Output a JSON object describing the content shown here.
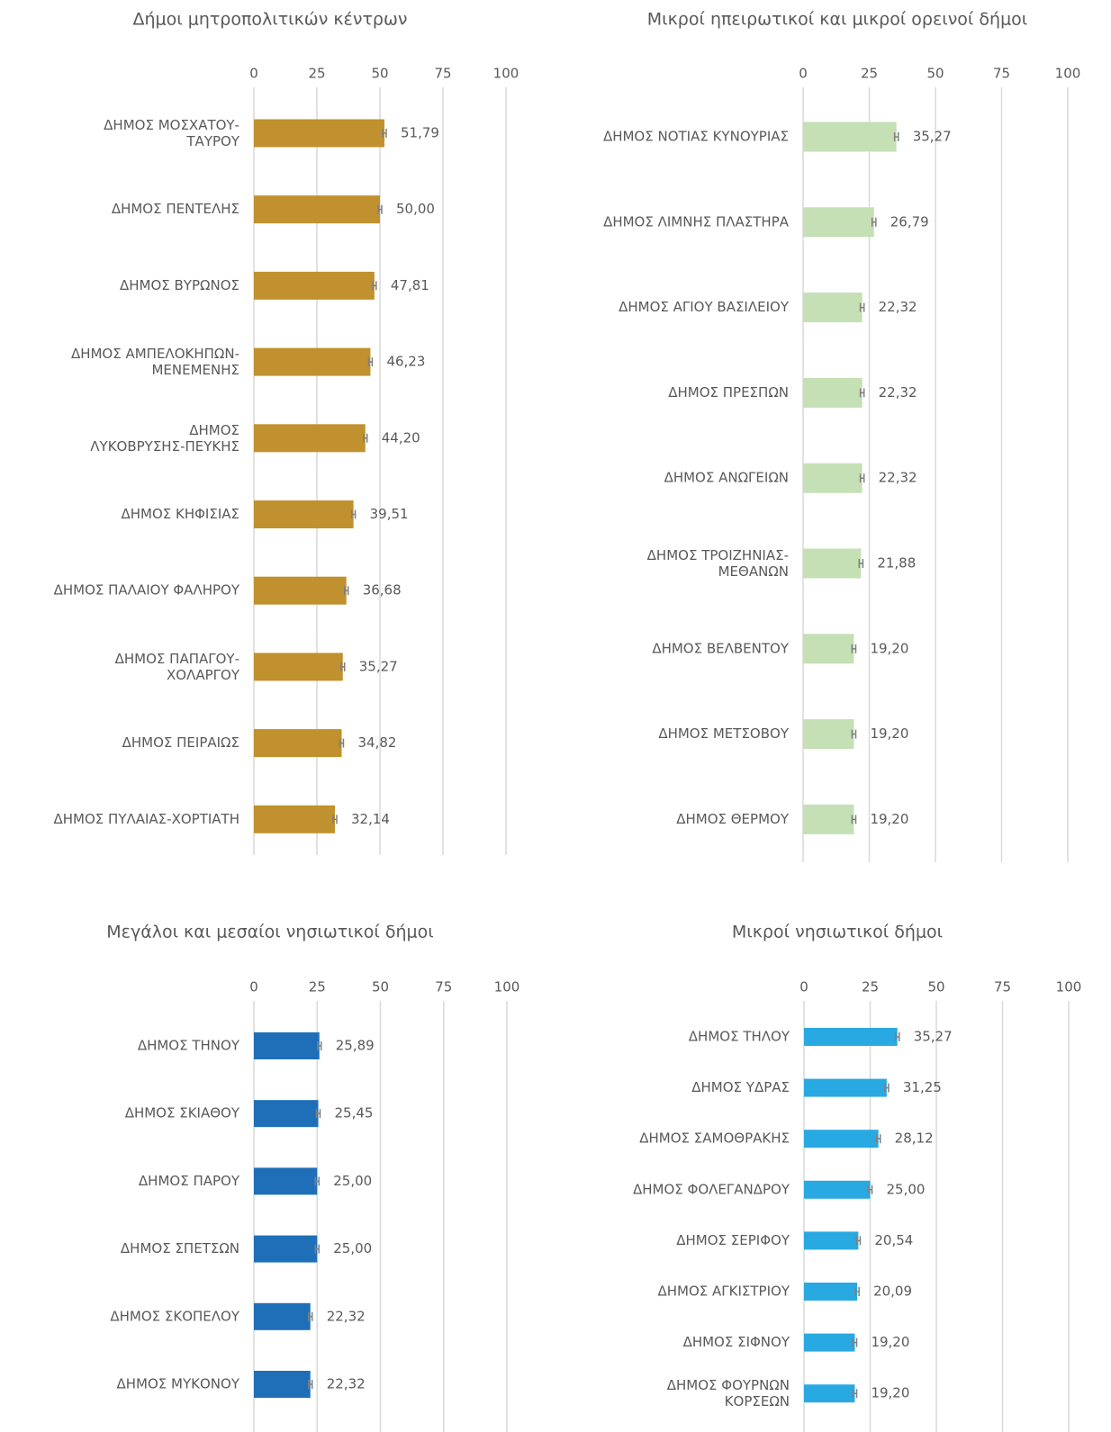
{
  "chart_data": [
    {
      "type": "bar",
      "title": "Δήμοι μητροπολιτικών κέντρων",
      "categories": [
        "ΔΗΜΟΣ ΜΟΣΧΑΤΟΥ-\nΤΑΥΡΟΥ",
        "ΔΗΜΟΣ ΠΕΝΤΕΛΗΣ",
        "ΔΗΜΟΣ ΒΥΡΩΝΟΣ",
        "ΔΗΜΟΣ ΑΜΠΕΛΟΚΗΠΩΝ-\nΜΕΝΕΜΕΝΗΣ",
        "ΔΗΜΟΣ\nΛΥΚΟΒΡΥΣΗΣ-ΠΕΥΚΗΣ",
        "ΔΗΜΟΣ ΚΗΦΙΣΙΑΣ",
        "ΔΗΜΟΣ ΠΑΛΑΙΟΥ ΦΑΛΗΡΟΥ",
        "ΔΗΜΟΣ ΠΑΠΑΓΟΥ-\nΧΟΛΑΡΓΟΥ",
        "ΔΗΜΟΣ ΠΕΙΡΑΙΩΣ",
        "ΔΗΜΟΣ ΠΥΛΑΙΑΣ-ΧΟΡΤΙΑΤΗ"
      ],
      "values": [
        51.79,
        50.0,
        47.81,
        46.23,
        44.2,
        39.51,
        36.68,
        35.27,
        34.82,
        32.14
      ],
      "value_labels": [
        "51,79",
        "50,00",
        "47,81",
        "46,23",
        "44,20",
        "39,51",
        "36,68",
        "35,27",
        "34,82",
        "32,14"
      ],
      "errors": [
        0.7,
        0.7,
        0.7,
        0.7,
        0.7,
        0.7,
        0.7,
        0.7,
        0.7,
        0.7
      ],
      "color": "#C0912E",
      "xlim": [
        0,
        100
      ],
      "xticks": [
        0,
        25,
        50,
        75,
        100
      ],
      "grid": true
    },
    {
      "type": "bar",
      "title": "Μικροί ηπειρωτικοί και μικροί ορεινοί δήμοι",
      "categories": [
        "ΔΗΜΟΣ ΝΟΤΙΑΣ ΚΥΝΟΥΡΙΑΣ",
        "ΔΗΜΟΣ ΛΙΜΝΗΣ ΠΛΑΣΤΗΡΑ",
        "ΔΗΜΟΣ ΑΓΙΟΥ ΒΑΣΙΛΕΙΟΥ",
        "ΔΗΜΟΣ ΠΡΕΣΠΩΝ",
        "ΔΗΜΟΣ ΑΝΩΓΕΙΩΝ",
        "ΔΗΜΟΣ ΤΡΟΙΖΗΝΙΑΣ-\nΜΕΘΑΝΩΝ",
        "ΔΗΜΟΣ ΒΕΛΒΕΝΤΟΥ",
        "ΔΗΜΟΣ ΜΕΤΣΟΒΟΥ",
        "ΔΗΜΟΣ ΘΕΡΜΟΥ"
      ],
      "values": [
        35.27,
        26.79,
        22.32,
        22.32,
        22.32,
        21.88,
        19.2,
        19.2,
        19.2
      ],
      "value_labels": [
        "35,27",
        "26,79",
        "22,32",
        "22,32",
        "22,32",
        "21,88",
        "19,20",
        "19,20",
        "19,20"
      ],
      "errors": [
        0.7,
        0.7,
        0.7,
        0.7,
        0.7,
        0.7,
        0.7,
        0.7,
        0.7
      ],
      "color": "#C5E0B4",
      "xlim": [
        0,
        100
      ],
      "xticks": [
        0,
        25,
        50,
        75,
        100
      ],
      "grid": true
    },
    {
      "type": "bar",
      "title": "Μεγάλοι και μεσαίοι νησιωτικοί δήμοι",
      "categories": [
        "ΔΗΜΟΣ ΤΗΝΟΥ",
        "ΔΗΜΟΣ ΣΚΙΑΘΟΥ",
        "ΔΗΜΟΣ ΠΑΡΟΥ",
        "ΔΗΜΟΣ ΣΠΕΤΣΩΝ",
        "ΔΗΜΟΣ ΣΚΟΠΕΛΟΥ",
        "ΔΗΜΟΣ ΜΥΚΟΝΟΥ"
      ],
      "values": [
        25.89,
        25.45,
        25.0,
        25.0,
        22.32,
        22.32
      ],
      "value_labels": [
        "25,89",
        "25,45",
        "25,00",
        "25,00",
        "22,32",
        "22,32"
      ],
      "errors": [
        0.7,
        0.7,
        0.7,
        0.7,
        0.7,
        0.7
      ],
      "color": "#1F6FB8",
      "xlim": [
        0,
        100
      ],
      "xticks": [
        0,
        25,
        50,
        75,
        100
      ],
      "grid": true
    },
    {
      "type": "bar",
      "title": "Μικροί νησιωτικοί δήμοι",
      "categories": [
        "ΔΗΜΟΣ ΤΗΛΟΥ",
        "ΔΗΜΟΣ ΥΔΡΑΣ",
        "ΔΗΜΟΣ ΣΑΜΟΘΡΑΚΗΣ",
        "ΔΗΜΟΣ ΦΟΛΕΓΑΝΔΡΟΥ",
        "ΔΗΜΟΣ ΣΕΡΙΦΟΥ",
        "ΔΗΜΟΣ ΑΓΚΙΣΤΡΙΟΥ",
        "ΔΗΜΟΣ ΣΙΦΝΟΥ",
        "ΔΗΜΟΣ ΦΟΥΡΝΩΝ\nΚΟΡΣΕΩΝ"
      ],
      "values": [
        35.27,
        31.25,
        28.12,
        25.0,
        20.54,
        20.09,
        19.2,
        19.2
      ],
      "value_labels": [
        "35,27",
        "31,25",
        "28,12",
        "25,00",
        "20,54",
        "20,09",
        "19,20",
        "19,20"
      ],
      "errors": [
        0.7,
        0.7,
        0.7,
        0.7,
        0.7,
        0.7,
        0.7,
        0.7
      ],
      "color": "#29A9E1",
      "xlim": [
        0,
        100
      ],
      "xticks": [
        0,
        25,
        50,
        75,
        100
      ],
      "grid": true
    }
  ]
}
